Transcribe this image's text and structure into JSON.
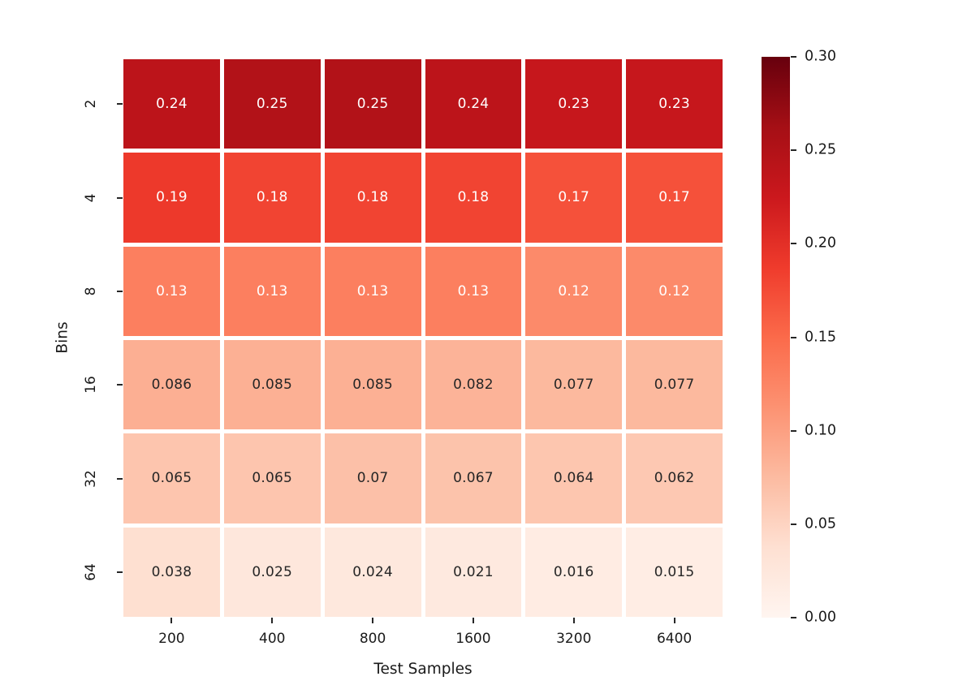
{
  "chart_data": {
    "type": "heatmap",
    "title": "",
    "xlabel": "Test Samples",
    "ylabel": "Bins",
    "x_categories": [
      "200",
      "400",
      "800",
      "1600",
      "3200",
      "6400"
    ],
    "y_categories": [
      "2",
      "4",
      "8",
      "16",
      "32",
      "64"
    ],
    "values": [
      [
        0.24,
        0.25,
        0.25,
        0.24,
        0.23,
        0.23
      ],
      [
        0.19,
        0.18,
        0.18,
        0.18,
        0.17,
        0.17
      ],
      [
        0.13,
        0.13,
        0.13,
        0.13,
        0.12,
        0.12
      ],
      [
        0.086,
        0.085,
        0.085,
        0.082,
        0.077,
        0.077
      ],
      [
        0.065,
        0.065,
        0.07,
        0.067,
        0.064,
        0.062
      ],
      [
        0.038,
        0.025,
        0.024,
        0.021,
        0.016,
        0.015
      ]
    ],
    "cell_labels": [
      [
        "0.24",
        "0.25",
        "0.25",
        "0.24",
        "0.23",
        "0.23"
      ],
      [
        "0.19",
        "0.18",
        "0.18",
        "0.18",
        "0.17",
        "0.17"
      ],
      [
        "0.13",
        "0.13",
        "0.13",
        "0.13",
        "0.12",
        "0.12"
      ],
      [
        "0.086",
        "0.085",
        "0.085",
        "0.082",
        "0.077",
        "0.077"
      ],
      [
        "0.065",
        "0.065",
        "0.07",
        "0.067",
        "0.064",
        "0.062"
      ],
      [
        "0.038",
        "0.025",
        "0.024",
        "0.021",
        "0.016",
        "0.015"
      ]
    ],
    "vmin": 0.0,
    "vmax": 0.3,
    "grid": false,
    "legend_position": "none",
    "colorbar": {
      "ticks_top_to_bottom": [
        "0.30",
        "0.25",
        "0.20",
        "0.15",
        "0.10",
        "0.05",
        "0.00"
      ]
    },
    "colormap": {
      "name": "Reds",
      "positions": [
        0.0,
        0.125,
        0.25,
        0.375,
        0.5,
        0.625,
        0.75,
        0.875,
        1.0
      ],
      "colors": [
        "#fff5f0",
        "#fee0d2",
        "#fcbba1",
        "#fc9272",
        "#fb6a4a",
        "#ef3b2c",
        "#cb181d",
        "#a50f15",
        "#67000d"
      ]
    },
    "annotation_text_colors": {
      "on_dark": "#ffffff",
      "on_light": "#262626"
    }
  }
}
